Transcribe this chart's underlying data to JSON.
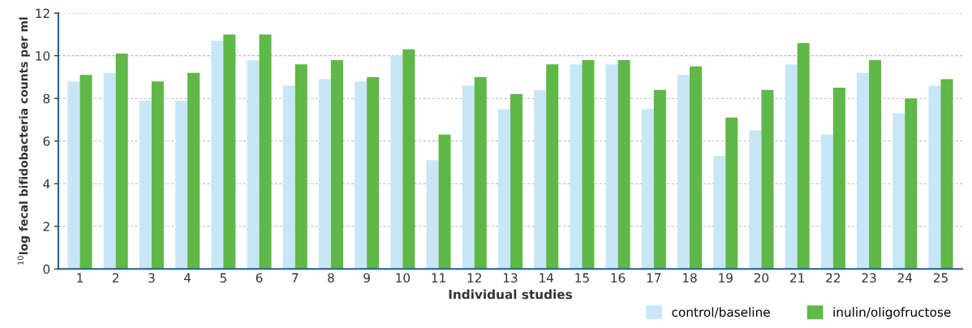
{
  "chart_data": {
    "type": "bar",
    "xlabel": "Individual studies",
    "ylabel": "$^{10}$log fecal bifidobacteria counts per ml",
    "categories": [
      "1",
      "2",
      "3",
      "4",
      "5",
      "6",
      "7",
      "8",
      "9",
      "10",
      "11",
      "12",
      "13",
      "14",
      "15",
      "16",
      "17",
      "18",
      "19",
      "20",
      "21",
      "22",
      "23",
      "24",
      "25"
    ],
    "series": [
      {
        "name": "control/baseline",
        "color": "#c7e7f7",
        "values": [
          8.8,
          9.2,
          7.9,
          7.9,
          10.7,
          9.8,
          8.6,
          8.9,
          8.8,
          10.0,
          5.1,
          8.6,
          7.5,
          8.4,
          9.6,
          9.6,
          7.5,
          9.1,
          5.3,
          6.5,
          9.6,
          6.3,
          9.2,
          7.3,
          8.6
        ]
      },
      {
        "name": "inulin/oligofructose",
        "color": "#5fb847",
        "values": [
          9.1,
          10.1,
          8.8,
          9.2,
          11.0,
          11.0,
          9.6,
          9.8,
          9.0,
          10.3,
          6.3,
          9.0,
          8.2,
          9.6,
          9.8,
          9.8,
          8.4,
          9.5,
          7.1,
          8.4,
          10.6,
          8.5,
          9.8,
          8.0,
          8.9
        ]
      }
    ],
    "ylim": [
      0,
      12
    ],
    "yticks": [
      0,
      2,
      4,
      6,
      8,
      10,
      12
    ],
    "grid": "y",
    "legend": "bottom right"
  }
}
